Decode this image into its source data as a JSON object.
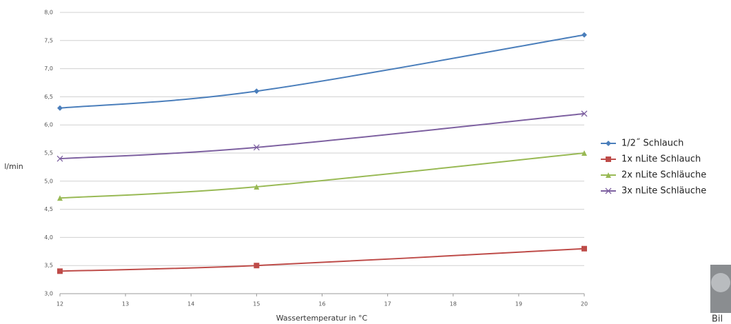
{
  "chart_data": {
    "type": "line",
    "x": [
      12,
      15,
      20
    ],
    "x_label": "Wassertemperatur in °C",
    "y_label": "l/min",
    "xlim": [
      12,
      20
    ],
    "xticks": [
      12,
      13,
      14,
      15,
      16,
      17,
      18,
      19,
      20
    ],
    "ylim": [
      3,
      8
    ],
    "yticks": [
      {
        "value": 3,
        "label": "3,0"
      },
      {
        "value": 3.5,
        "label": "3,5"
      },
      {
        "value": 4,
        "label": "4,0"
      },
      {
        "value": 4.5,
        "label": "4,5"
      },
      {
        "value": 5,
        "label": "5,0"
      },
      {
        "value": 5.5,
        "label": "5,5"
      },
      {
        "value": 6,
        "label": "6,0"
      },
      {
        "value": 6.5,
        "label": "6,5"
      },
      {
        "value": 7,
        "label": "7,0"
      },
      {
        "value": 7.5,
        "label": "7,5"
      },
      {
        "value": 8,
        "label": "8,0"
      }
    ],
    "grid": true,
    "legend": "right",
    "series": [
      {
        "name": "1/2˝ Schlauch",
        "color": "#4a7ebb",
        "marker": "diamond",
        "values": [
          6.3,
          6.6,
          7.6
        ]
      },
      {
        "name": "1x nLite Schlauch",
        "color": "#be4b48",
        "marker": "square",
        "values": [
          3.4,
          3.5,
          3.8
        ]
      },
      {
        "name": "2x nLite Schläuche",
        "color": "#98b954",
        "marker": "triangle",
        "values": [
          4.7,
          4.9,
          5.5
        ]
      },
      {
        "name": "3x nLite Schläuche",
        "color": "#7d60a0",
        "marker": "x",
        "values": [
          5.4,
          5.6,
          6.2
        ]
      }
    ]
  },
  "photo_caption": "Bil"
}
